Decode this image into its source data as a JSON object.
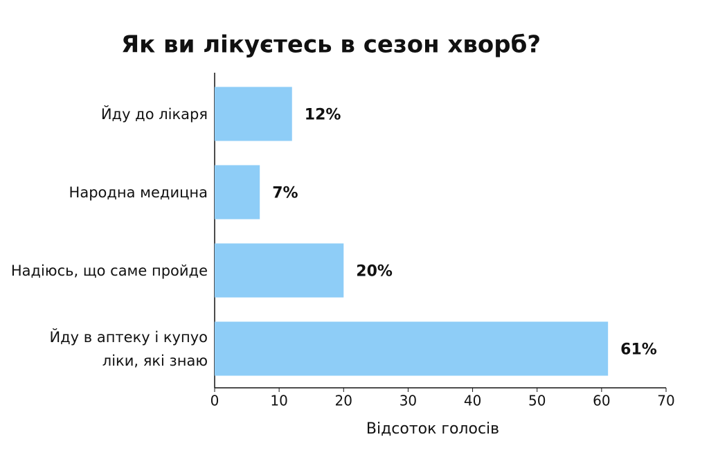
{
  "chart_data": {
    "type": "barh",
    "title": "Як ви лікуєтесь в сезон хворб?",
    "categories": [
      "Йду до лікаря",
      "Народна медицна",
      "Надіюсь, що саме пройде",
      "Йду в аптеку і купуо\nліки, які знаю"
    ],
    "values": [
      12,
      7,
      20,
      61
    ],
    "value_labels": [
      "12%",
      "7%",
      "20%",
      "61%"
    ],
    "color": "#8ecdf7",
    "xlabel": "Відсоток голосів",
    "xlim": [
      0,
      70
    ],
    "xticks": [
      0,
      10,
      20,
      30,
      40,
      50,
      60,
      70
    ]
  }
}
